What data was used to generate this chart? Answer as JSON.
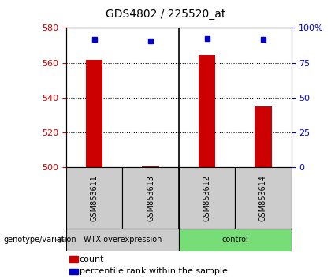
{
  "title": "GDS4802 / 225520_at",
  "samples": [
    "GSM853611",
    "GSM853613",
    "GSM853612",
    "GSM853614"
  ],
  "bar_values": [
    561.5,
    500.5,
    564.5,
    535.0
  ],
  "percentile_values": [
    573.5,
    572.5,
    573.8,
    573.5
  ],
  "ylim_left": [
    500,
    580
  ],
  "ylim_right": [
    0,
    100
  ],
  "yticks_left": [
    500,
    520,
    540,
    560,
    580
  ],
  "yticks_right": [
    0,
    25,
    50,
    75,
    100
  ],
  "ytick_labels_right": [
    "0",
    "25",
    "50",
    "75",
    "100%"
  ],
  "bar_color": "#cc0000",
  "percentile_color": "#0000cc",
  "bar_bottom": 500,
  "group_colors": [
    "#cccccc",
    "#77dd77"
  ],
  "group_labels": [
    "WTX overexpression",
    "control"
  ],
  "genotype_label": "genotype/variation",
  "legend_count_label": "count",
  "legend_percentile_label": "percentile rank within the sample",
  "title_fontsize": 10,
  "axis_color_left": "#cc0000",
  "axis_color_right": "#0000cc",
  "sample_box_color": "#cccccc",
  "bar_width": 0.3,
  "grid_lines": [
    520,
    540,
    560
  ]
}
